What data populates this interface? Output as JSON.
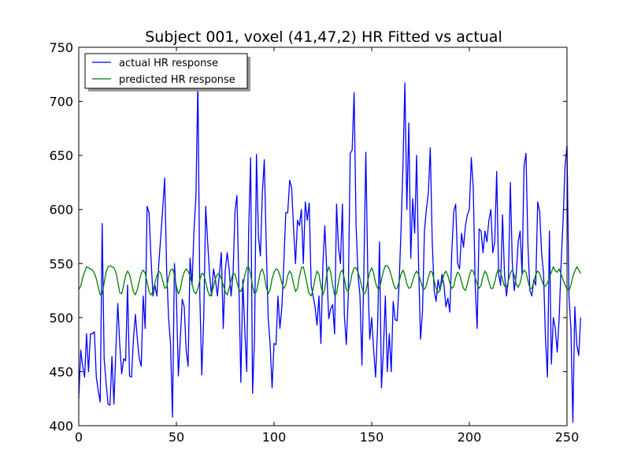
{
  "chart_data": {
    "type": "line",
    "title": "Subject 001, voxel (41,47,2) HR Fitted vs actual",
    "xlabel": "",
    "ylabel": "",
    "xlim": [
      0,
      250
    ],
    "ylim": [
      400,
      750
    ],
    "xticks": [
      0,
      50,
      100,
      150,
      200,
      250
    ],
    "yticks": [
      400,
      450,
      500,
      550,
      600,
      650,
      700,
      750
    ],
    "grid": false,
    "legend_position": "top-left",
    "series": [
      {
        "name": "actual HR response",
        "color": "#0000ff",
        "x_start": 0,
        "x_step": 1,
        "values": [
          425,
          470,
          455,
          445,
          485,
          450,
          485,
          485,
          487,
          445,
          432,
          422,
          587,
          462,
          440,
          420,
          419,
          464,
          420,
          470,
          513,
          475,
          448,
          462,
          460,
          530,
          446,
          445,
          480,
          503,
          480,
          462,
          455,
          520,
          490,
          603,
          597,
          555,
          520,
          530,
          520,
          550,
          575,
          601,
          629,
          545,
          500,
          475,
          408,
          550,
          520,
          446,
          480,
          517,
          510,
          470,
          455,
          555,
          530,
          580,
          612,
          718,
          520,
          447,
          500,
          603,
          570,
          540,
          520,
          545,
          535,
          520,
          540,
          560,
          490,
          543,
          560,
          545,
          520,
          540,
          598,
          613,
          530,
          440,
          535,
          490,
          450,
          580,
          648,
          430,
          480,
          651,
          575,
          557,
          615,
          646,
          567,
          500,
          475,
          435,
          476,
          475,
          520,
          490,
          510,
          550,
          597,
          597,
          627,
          620,
          582,
          550,
          590,
          585,
          600,
          550,
          607,
          590,
          606,
          530,
          520,
          510,
          493,
          520,
          476,
          548,
          585,
          543,
          499,
          508,
          512,
          485,
          605,
          565,
          550,
          605,
          502,
          475,
          520,
          652,
          655,
          708,
          585,
          540,
          520,
          456,
          545,
          653,
          540,
          480,
          500,
          470,
          445,
          490,
          570,
          435,
          470,
          520,
          450,
          485,
          450,
          515,
          498,
          497,
          530,
          580,
          640,
          717,
          600,
          680,
          555,
          610,
          578,
          650,
          550,
          480,
          505,
          580,
          600,
          615,
          657,
          570,
          525,
          515,
          535,
          525,
          540,
          530,
          510,
          518,
          505,
          560,
          598,
          605,
          550,
          545,
          578,
          565,
          585,
          595,
          600,
          648,
          620,
          530,
          490,
          582,
          580,
          560,
          580,
          570,
          590,
          600,
          560,
          570,
          635,
          540,
          530,
          595,
          540,
          520,
          535,
          625,
          550,
          525,
          540,
          570,
          580,
          540,
          640,
          652,
          567,
          525,
          520,
          535,
          530,
          607,
          598,
          560,
          540,
          480,
          445,
          580,
          457,
          500,
          490,
          468,
          500,
          550,
          590,
          640,
          659,
          520,
          490,
          403,
          510,
          475,
          465,
          500
        ]
      },
      {
        "name": "predicted HR response",
        "color": "#008000",
        "x_start": 0,
        "x_step": 1,
        "values": [
          526,
          529,
          537,
          542,
          547,
          546,
          545,
          544,
          541,
          536,
          528,
          521,
          522,
          532,
          542,
          547,
          548,
          547,
          546,
          542,
          533,
          523,
          522,
          530,
          539,
          543,
          540,
          532,
          524,
          521,
          526,
          534,
          541,
          544,
          541,
          533,
          524,
          521,
          524,
          532,
          539,
          543,
          541,
          534,
          527,
          528,
          537,
          544,
          545,
          540,
          529,
          522,
          526,
          536,
          542,
          545,
          543,
          538,
          531,
          524,
          522,
          527,
          535,
          541,
          540,
          533,
          525,
          520,
          522,
          529,
          536,
          540,
          541,
          536,
          530,
          524,
          521,
          527,
          535,
          541,
          540,
          533,
          526,
          524,
          529,
          539,
          546,
          547,
          540,
          529,
          522,
          524,
          533,
          542,
          545,
          539,
          528,
          522,
          526,
          536,
          542,
          545,
          544,
          539,
          532,
          527,
          530,
          539,
          543,
          540,
          531,
          524,
          527,
          538,
          546,
          547,
          539,
          530,
          522,
          520,
          526,
          536,
          543,
          540,
          529,
          521,
          527,
          540,
          547,
          542,
          530,
          521,
          522,
          533,
          542,
          544,
          536,
          526,
          524,
          532,
          541,
          546,
          546,
          542,
          536,
          528,
          522,
          524,
          534,
          542,
          546,
          541,
          532,
          527,
          527,
          535,
          543,
          548,
          548,
          545,
          539,
          532,
          527,
          527,
          533,
          540,
          544,
          539,
          531,
          527,
          528,
          534,
          540,
          543,
          540,
          534,
          528,
          526,
          530,
          537,
          543,
          542,
          534,
          527,
          523,
          526,
          533,
          540,
          543,
          539,
          532,
          527,
          529,
          537,
          542,
          540,
          533,
          527,
          525,
          531,
          539,
          544,
          543,
          537,
          531,
          527,
          530,
          538,
          543,
          540,
          533,
          527,
          527,
          533,
          541,
          545,
          542,
          535,
          529,
          528,
          534,
          541,
          544,
          539,
          531,
          528,
          532,
          540,
          544,
          542,
          534,
          527,
          527,
          533,
          540,
          543,
          541,
          535,
          530,
          529,
          532,
          537,
          542,
          547,
          543,
          542,
          545,
          540,
          535,
          530,
          527,
          525,
          530,
          538,
          543,
          547,
          544,
          541
        ]
      }
    ]
  }
}
